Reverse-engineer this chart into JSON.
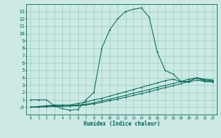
{
  "title": "",
  "xlabel": "Humidex (Indice chaleur)",
  "ylabel": "",
  "bg_color": "#cce9e4",
  "grid_color": "#99ccc4",
  "line_color": "#006655",
  "xlim": [
    -0.5,
    23.5
  ],
  "ylim": [
    -1.0,
    14.0
  ],
  "yticks": [
    0,
    1,
    2,
    3,
    4,
    5,
    6,
    7,
    8,
    9,
    10,
    11,
    12,
    13
  ],
  "xticks": [
    0,
    1,
    2,
    3,
    4,
    5,
    6,
    7,
    8,
    9,
    10,
    11,
    12,
    13,
    14,
    15,
    16,
    17,
    18,
    19,
    20,
    21,
    22,
    23
  ],
  "line1_x": [
    0,
    1,
    2,
    3,
    4,
    5,
    6,
    7,
    8,
    9,
    10,
    11,
    12,
    13,
    14,
    15,
    16,
    17,
    18,
    19,
    20,
    21,
    22,
    23
  ],
  "line1_y": [
    1.0,
    1.0,
    1.0,
    0.2,
    -0.2,
    -0.4,
    -0.3,
    1.0,
    2.0,
    8.0,
    10.5,
    12.0,
    13.0,
    13.3,
    13.5,
    12.2,
    7.5,
    5.0,
    4.5,
    3.5,
    3.8,
    4.0,
    3.8,
    3.7
  ],
  "line2_x": [
    0,
    1,
    2,
    3,
    4,
    5,
    6,
    7,
    8,
    9,
    10,
    11,
    12,
    13,
    14,
    15,
    16,
    17,
    18,
    19,
    20,
    21,
    22,
    23
  ],
  "line2_y": [
    0.0,
    0.1,
    0.2,
    0.3,
    0.3,
    0.3,
    0.5,
    0.7,
    1.0,
    1.2,
    1.5,
    1.8,
    2.1,
    2.4,
    2.7,
    3.0,
    3.3,
    3.6,
    3.8,
    3.5,
    3.5,
    4.0,
    3.5,
    3.5
  ],
  "line3_x": [
    0,
    1,
    2,
    3,
    4,
    5,
    6,
    7,
    8,
    9,
    10,
    11,
    12,
    13,
    14,
    15,
    16,
    17,
    18,
    19,
    20,
    21,
    22,
    23
  ],
  "line3_y": [
    0.0,
    0.05,
    0.1,
    0.15,
    0.2,
    0.2,
    0.3,
    0.4,
    0.6,
    0.85,
    1.1,
    1.35,
    1.6,
    1.9,
    2.15,
    2.4,
    2.7,
    2.95,
    3.2,
    3.5,
    3.4,
    3.7,
    3.5,
    3.4
  ],
  "line4_x": [
    0,
    1,
    2,
    3,
    4,
    5,
    6,
    7,
    8,
    9,
    10,
    11,
    12,
    13,
    14,
    15,
    16,
    17,
    18,
    19,
    20,
    21,
    22,
    23
  ],
  "line4_y": [
    0.0,
    0.03,
    0.06,
    0.1,
    0.12,
    0.15,
    0.2,
    0.3,
    0.45,
    0.65,
    0.9,
    1.1,
    1.35,
    1.6,
    1.85,
    2.1,
    2.4,
    2.65,
    2.9,
    3.2,
    3.5,
    4.0,
    3.7,
    3.6
  ]
}
